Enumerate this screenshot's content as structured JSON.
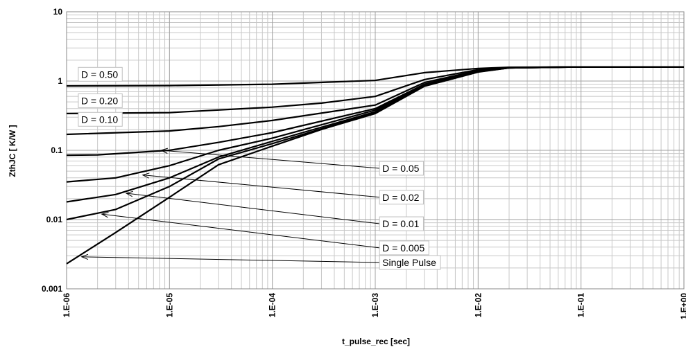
{
  "chart_data": {
    "type": "line",
    "title": "",
    "xlabel": "t_pulse_rec [sec]",
    "ylabel": "ZthJC [ K/W ]",
    "x_scale": "log",
    "y_scale": "log",
    "xlim": [
      1e-06,
      1
    ],
    "ylim": [
      0.001,
      10
    ],
    "grid": true,
    "x_tick_labels": [
      "1.E-06",
      "1.E-05",
      "1.E-04",
      "1.E-03",
      "1.E-02",
      "1.E-01",
      "1.E+00"
    ],
    "y_tick_labels": [
      "10",
      "1",
      "0.1",
      "0.01",
      "0.001"
    ],
    "colors": {
      "line": "#000000",
      "grid": "#c8c8c8",
      "background": "#ffffff"
    },
    "series": [
      {
        "name": "D = 0.50",
        "x": [
          1e-06,
          1e-05,
          0.0001,
          0.001,
          0.003,
          0.01,
          0.02,
          0.1,
          1
        ],
        "y": [
          0.85,
          0.86,
          0.9,
          1.02,
          1.32,
          1.52,
          1.58,
          1.6,
          1.6
        ]
      },
      {
        "name": "D = 0.20",
        "x": [
          1e-06,
          1e-05,
          0.0001,
          0.0003,
          0.001,
          0.003,
          0.01,
          0.02,
          0.1,
          1
        ],
        "y": [
          0.34,
          0.35,
          0.42,
          0.48,
          0.6,
          1.05,
          1.46,
          1.57,
          1.6,
          1.6
        ]
      },
      {
        "name": "D = 0.10",
        "x": [
          1e-06,
          1e-05,
          3e-05,
          0.0001,
          0.001,
          0.003,
          0.01,
          0.02,
          0.1,
          1
        ],
        "y": [
          0.17,
          0.19,
          0.22,
          0.27,
          0.45,
          0.95,
          1.42,
          1.56,
          1.6,
          1.6
        ]
      },
      {
        "name": "D = 0.05",
        "x": [
          1e-06,
          2e-06,
          1e-05,
          3e-05,
          0.0001,
          0.001,
          0.003,
          0.01,
          0.02,
          0.1,
          1
        ],
        "y": [
          0.085,
          0.086,
          0.1,
          0.13,
          0.18,
          0.4,
          0.9,
          1.4,
          1.56,
          1.6,
          1.6
        ]
      },
      {
        "name": "D = 0.02",
        "x": [
          1e-06,
          3e-06,
          1e-05,
          3e-05,
          0.0001,
          0.001,
          0.003,
          0.01,
          0.02,
          0.1,
          1
        ],
        "y": [
          0.035,
          0.04,
          0.06,
          0.1,
          0.15,
          0.38,
          0.88,
          1.38,
          1.55,
          1.6,
          1.6
        ]
      },
      {
        "name": "D = 0.01",
        "x": [
          1e-06,
          3e-06,
          1e-05,
          3e-05,
          0.0001,
          0.001,
          0.003,
          0.01,
          0.02,
          0.1,
          1
        ],
        "y": [
          0.018,
          0.023,
          0.04,
          0.08,
          0.135,
          0.36,
          0.86,
          1.37,
          1.55,
          1.6,
          1.6
        ]
      },
      {
        "name": "D = 0.005",
        "x": [
          1e-06,
          3e-06,
          1e-05,
          3e-05,
          0.0001,
          0.001,
          0.003,
          0.01,
          0.02,
          0.1,
          1
        ],
        "y": [
          0.01,
          0.014,
          0.03,
          0.075,
          0.125,
          0.35,
          0.85,
          1.36,
          1.55,
          1.6,
          1.6
        ]
      },
      {
        "name": "Single Pulse",
        "x": [
          1e-06,
          3e-06,
          1e-05,
          3e-05,
          0.0001,
          0.0003,
          0.001,
          0.003,
          0.01,
          0.02,
          0.1,
          1
        ],
        "y": [
          0.0023,
          0.0065,
          0.021,
          0.062,
          0.115,
          0.2,
          0.34,
          0.84,
          1.35,
          1.55,
          1.6,
          1.6
        ]
      }
    ],
    "annotations": [
      {
        "text": "D = 0.50",
        "target_series": "D = 0.50",
        "box_pos": [
          1.3e-06,
          1.25
        ]
      },
      {
        "text": "D = 0.20",
        "target_series": "D = 0.20",
        "box_pos": [
          1.3e-06,
          0.52
        ]
      },
      {
        "text": "D = 0.10",
        "target_series": "D = 0.10",
        "box_pos": [
          1.3e-06,
          0.28
        ]
      },
      {
        "text": "D = 0.05",
        "target_series": "D = 0.05",
        "box_pos": [
          0.0011,
          0.055
        ],
        "arrow_to": [
          8.3e-06,
          0.1
        ]
      },
      {
        "text": "D = 0.02",
        "target_series": "D = 0.02",
        "box_pos": [
          0.0011,
          0.021
        ],
        "arrow_to": [
          5.5e-06,
          0.044
        ]
      },
      {
        "text": "D = 0.01",
        "target_series": "D = 0.01",
        "box_pos": [
          0.0011,
          0.0087
        ],
        "arrow_to": [
          3.8e-06,
          0.024
        ]
      },
      {
        "text": "D = 0.005",
        "target_series": "D = 0.005",
        "box_pos": [
          0.0011,
          0.0039
        ],
        "arrow_to": [
          2.2e-06,
          0.012
        ]
      },
      {
        "text": "Single Pulse",
        "target_series": "Single Pulse",
        "box_pos": [
          0.0011,
          0.0024
        ],
        "arrow_to": [
          1.4e-06,
          0.0029
        ]
      }
    ]
  }
}
